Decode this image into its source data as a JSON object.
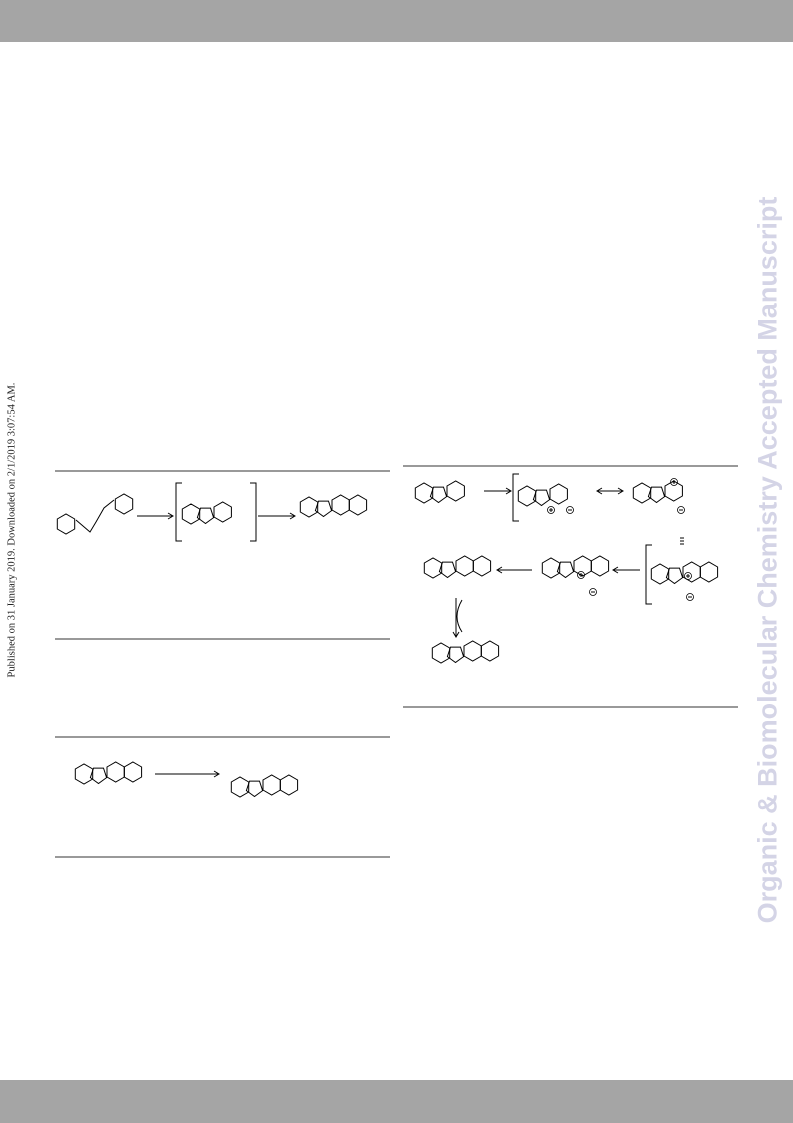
{
  "sidebar_note": "Published on 31 January 2019. Downloaded on 2/1/2019 3:07:54 AM.",
  "journal_watermark": "Organic & Biomolecular Chemistry Accepted Manuscript"
}
